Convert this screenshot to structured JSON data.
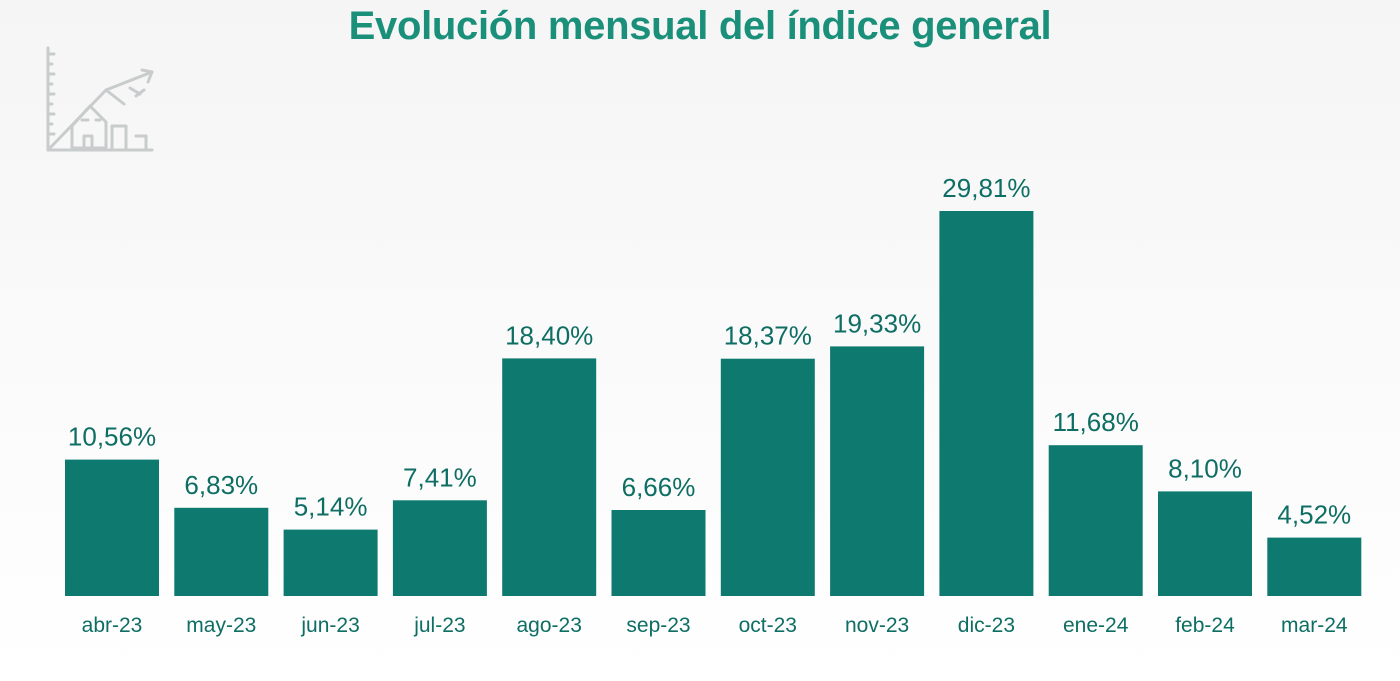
{
  "chart_data": {
    "type": "bar",
    "title": "Evolución mensual del índice general",
    "categories": [
      "abr-23",
      "may-23",
      "jun-23",
      "jul-23",
      "ago-23",
      "sep-23",
      "oct-23",
      "nov-23",
      "dic-23",
      "ene-24",
      "feb-24",
      "mar-24"
    ],
    "values": [
      10.56,
      6.83,
      5.14,
      7.41,
      18.4,
      6.66,
      18.37,
      19.33,
      29.81,
      11.68,
      8.1,
      4.52
    ],
    "value_labels": [
      "10,56%",
      "6,83%",
      "5,14%",
      "7,41%",
      "18,40%",
      "6,66%",
      "18,37%",
      "19,33%",
      "29,81%",
      "11,68%",
      "8,10%",
      "4,52%"
    ],
    "xlabel": "",
    "ylabel": "",
    "ylim": [
      0,
      30
    ],
    "grid": false,
    "legend": "none",
    "colors": {
      "bar": "#0e7a6f",
      "title": "#1a8f7a",
      "labels": "#0e6e64"
    }
  },
  "decoration": {
    "icon": "house-growth-chart-icon"
  }
}
